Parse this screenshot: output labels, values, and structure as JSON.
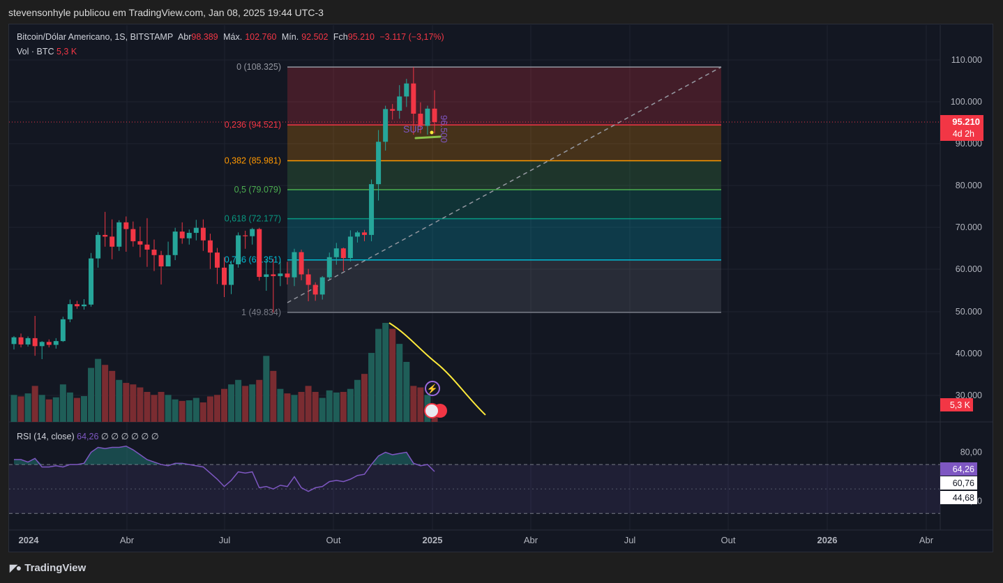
{
  "header": {
    "published_by": "stevensonhyle publicou em TradingView.com, Jan 08, 2025 19:44 UTC-3"
  },
  "legend": {
    "symbol": "Bitcoin/Dólar Americano, 1S, BITSTAMP",
    "open_label": "Abr",
    "open": "98.389",
    "high_label": "Máx.",
    "high": "102.760",
    "low_label": "Mín.",
    "low": "92.502",
    "close_label": "Fch",
    "close": "95.210",
    "change": "−3.117 (−3,17%)",
    "vol_label": "Vol · BTC",
    "vol_value": "5,3 K"
  },
  "rsi_legend": {
    "label": "RSI (14, close)",
    "value": "64,26",
    "extras": "∅ ∅ ∅ ∅ ∅ ∅"
  },
  "price_axis": [
    "110.000",
    "100.000",
    "90.000",
    "80.000",
    "70.000",
    "60.000",
    "50.000",
    "40.000",
    "30.000"
  ],
  "rsi_axis": [
    "80,00",
    "40,00"
  ],
  "price_tag": {
    "price": "95.210",
    "countdown": "4d 2h",
    "volume": "5,3 K"
  },
  "rsi_tags": {
    "rsi": "64,26",
    "upper": "60,76",
    "lower": "44,68"
  },
  "time_axis": [
    "2024",
    "Abr",
    "Jul",
    "Out",
    "2025",
    "Abr",
    "Jul",
    "Out",
    "2026",
    "Abr"
  ],
  "overlay_text": {
    "sup": "SUP",
    "fib_side": "96.500"
  },
  "brand": "TradingView",
  "colors": {
    "up": "#26a69a",
    "down": "#f23645",
    "vol_up": "#1f5e58",
    "vol_down": "#7a2c31",
    "rsi": "#7e57c2",
    "annotation": "#ffeb3b"
  },
  "chart_data": {
    "type": "candlestick",
    "title": "Bitcoin/Dólar Americano, 1S, BITSTAMP",
    "ylim": [
      23000,
      115000
    ],
    "fibonacci": [
      {
        "level": "0",
        "value": 108325,
        "label": "0 (108.325)",
        "color": "#9598a1"
      },
      {
        "level": "0.236",
        "value": 94521,
        "label": "0,236 (94.521)",
        "color": "#f23645"
      },
      {
        "level": "0.382",
        "value": 85981,
        "label": "0,382 (85.981)",
        "color": "#ff9800"
      },
      {
        "level": "0.5",
        "value": 79079,
        "label": "0,5 (79.079)",
        "color": "#4caf50"
      },
      {
        "level": "0.618",
        "value": 72177,
        "label": "0,618 (72.177)",
        "color": "#089981"
      },
      {
        "level": "0.786",
        "value": 62351,
        "label": "0,786 (62.351)",
        "color": "#00bcd4"
      },
      {
        "level": "1",
        "value": 49834,
        "label": "1 (49.834)",
        "color": "#787b86"
      }
    ],
    "candles": [
      [
        42300,
        43900,
        41000,
        44200,
        9000
      ],
      [
        43900,
        42200,
        41500,
        44800,
        8500
      ],
      [
        42200,
        43700,
        41700,
        44100,
        9500
      ],
      [
        43700,
        41800,
        39500,
        49000,
        12000
      ],
      [
        41800,
        42800,
        38700,
        43000,
        9000
      ],
      [
        42800,
        42100,
        41500,
        43400,
        7500
      ],
      [
        42100,
        43000,
        41200,
        43700,
        8200
      ],
      [
        43000,
        48200,
        42800,
        48800,
        12500
      ],
      [
        48200,
        51800,
        47500,
        52900,
        9800
      ],
      [
        51800,
        51300,
        50700,
        52600,
        8000
      ],
      [
        51300,
        51700,
        50500,
        53000,
        8600
      ],
      [
        51700,
        62700,
        51200,
        64000,
        18000
      ],
      [
        62700,
        68300,
        60500,
        69000,
        21000
      ],
      [
        68300,
        67900,
        65500,
        73800,
        19000
      ],
      [
        67900,
        65500,
        62500,
        72000,
        17000
      ],
      [
        65500,
        71300,
        64500,
        71800,
        14000
      ],
      [
        71300,
        69700,
        64300,
        72700,
        13000
      ],
      [
        69700,
        66800,
        65500,
        71500,
        12500
      ],
      [
        66800,
        66000,
        63000,
        70300,
        11500
      ],
      [
        66000,
        64800,
        60700,
        72300,
        10000
      ],
      [
        64800,
        63500,
        59700,
        67200,
        9000
      ],
      [
        63500,
        60800,
        56500,
        64500,
        10000
      ],
      [
        60800,
        63500,
        61100,
        66700,
        9000
      ],
      [
        63500,
        69100,
        62300,
        70000,
        7500
      ],
      [
        69100,
        67500,
        66200,
        71300,
        7000
      ],
      [
        67500,
        68800,
        66000,
        69600,
        7200
      ],
      [
        68800,
        70000,
        67000,
        71900,
        8000
      ],
      [
        70000,
        67000,
        64500,
        72000,
        6500
      ],
      [
        67000,
        64100,
        60200,
        68600,
        8500
      ],
      [
        64100,
        60500,
        56600,
        65200,
        9000
      ],
      [
        60500,
        56400,
        53500,
        63000,
        11000
      ],
      [
        56400,
        61300,
        54200,
        62200,
        12500
      ],
      [
        61300,
        68200,
        60500,
        68900,
        14000
      ],
      [
        68200,
        68000,
        65000,
        69300,
        12000
      ],
      [
        68000,
        69700,
        66000,
        70000,
        12500
      ],
      [
        69700,
        58300,
        57400,
        70000,
        14000
      ],
      [
        58300,
        58900,
        55000,
        62600,
        22000
      ],
      [
        58900,
        58500,
        49800,
        62600,
        17000
      ],
      [
        58500,
        59100,
        56100,
        62000,
        11000
      ],
      [
        59100,
        58200,
        56500,
        61900,
        9500
      ],
      [
        58200,
        64200,
        56100,
        65000,
        9000
      ],
      [
        64200,
        58900,
        57500,
        64800,
        10000
      ],
      [
        58900,
        56400,
        52500,
        60200,
        12000
      ],
      [
        56400,
        54100,
        52600,
        57000,
        10000
      ],
      [
        54100,
        58200,
        52900,
        58500,
        8000
      ],
      [
        58200,
        63000,
        57600,
        64100,
        10500
      ],
      [
        63000,
        65100,
        61200,
        66400,
        9800
      ],
      [
        65100,
        62800,
        59700,
        65300,
        10000
      ],
      [
        62800,
        67900,
        62000,
        69400,
        11000
      ],
      [
        67900,
        68900,
        66500,
        69300,
        14000
      ],
      [
        68900,
        68300,
        66800,
        69500,
        16000
      ],
      [
        68300,
        80400,
        66800,
        81500,
        23000
      ],
      [
        80400,
        90500,
        76500,
        93300,
        31000
      ],
      [
        90500,
        98300,
        88400,
        99100,
        33000
      ],
      [
        98300,
        97900,
        95800,
        99500,
        31000
      ],
      [
        97900,
        101300,
        96000,
        104000,
        26000
      ],
      [
        101300,
        104400,
        98800,
        105500,
        20000
      ],
      [
        104400,
        97200,
        92200,
        108300,
        12000
      ],
      [
        97200,
        94300,
        92500,
        99900,
        11500
      ],
      [
        94300,
        98400,
        92200,
        99100,
        9000
      ],
      [
        98400,
        95200,
        92500,
        102800,
        5300
      ]
    ],
    "rsi": [
      74,
      74,
      72,
      75,
      68,
      68,
      69,
      68,
      70,
      70,
      71,
      80,
      84,
      83,
      84,
      84,
      85,
      82,
      78,
      74,
      72,
      70,
      69,
      71,
      71,
      70,
      69,
      68,
      63,
      58,
      52,
      57,
      64,
      63,
      64,
      51,
      52,
      50,
      53,
      52,
      60,
      51,
      48,
      51,
      52,
      56,
      57,
      56,
      58,
      61,
      62,
      70,
      77,
      80,
      78,
      79,
      80,
      71,
      69,
      70,
      64.26
    ],
    "rsi_bands": {
      "upper": 70,
      "middle": 50,
      "lower": 30
    },
    "rsi_ylim": [
      25,
      90
    ]
  }
}
